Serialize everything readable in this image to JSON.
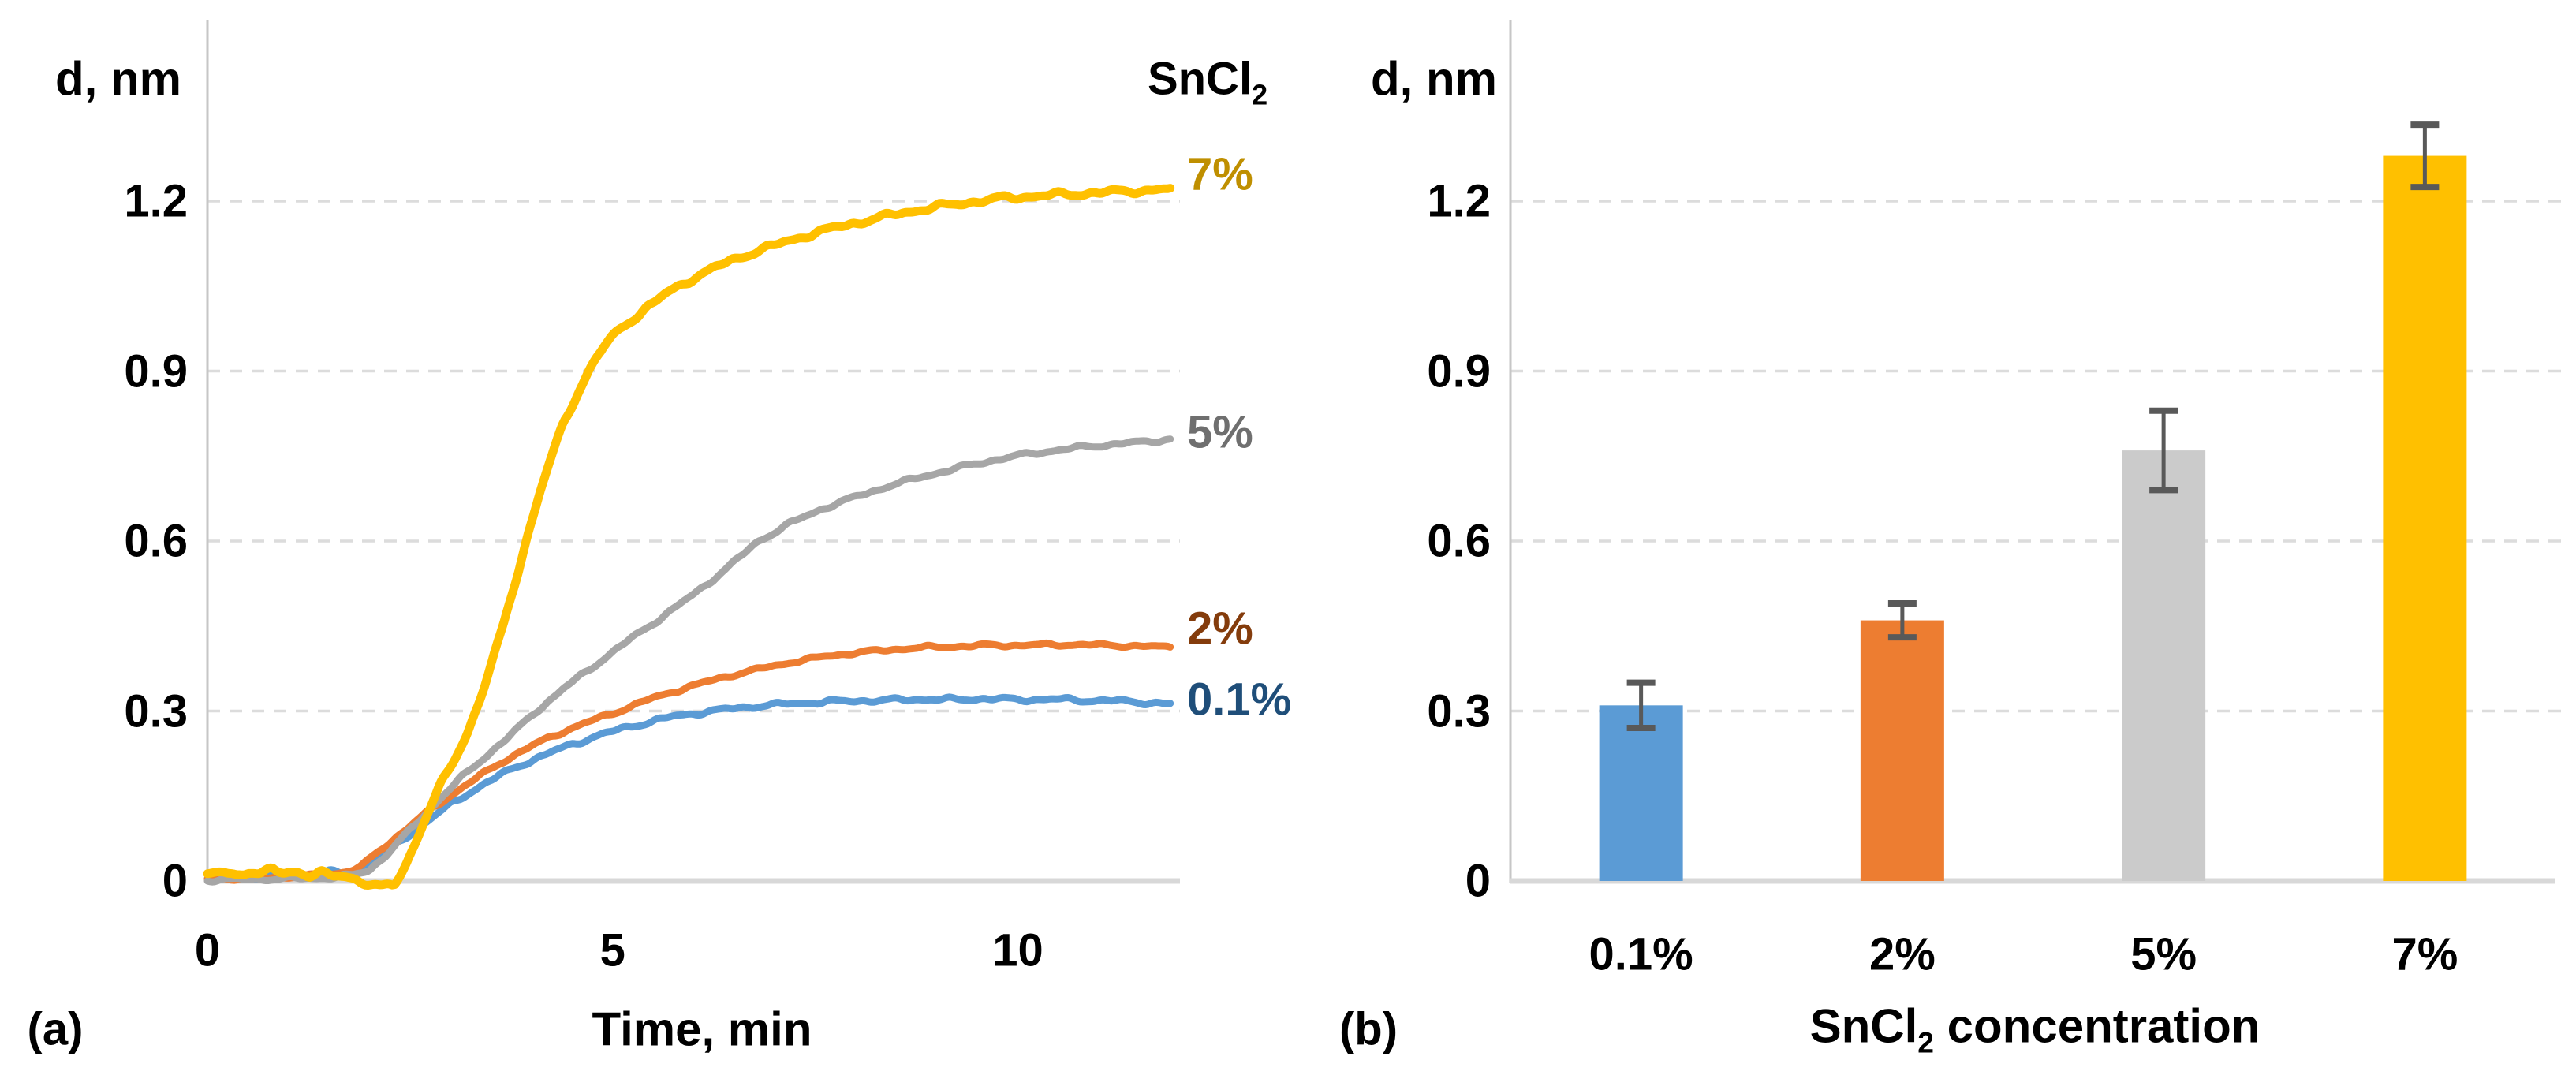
{
  "figure": {
    "background": "#ffffff",
    "grid_color": "#DCDCDC",
    "axis_color": "#C6C6C6",
    "baseline_color": "#D8D8D8",
    "text_color": "#000000"
  },
  "chart_data": [
    {
      "id": "a",
      "type": "line",
      "tag": "(a)",
      "ylabel": "d, nm",
      "xlabel": "Time, min",
      "legend_title": {
        "base": "SnCl",
        "sub": "2",
        "full": "SnCl₂"
      },
      "xlim": [
        0,
        12
      ],
      "ylim": [
        0,
        1.32
      ],
      "grid": "horizontal dashed",
      "legend_position": "right of plot, labels at curve ends",
      "yticks": [
        {
          "v": 0,
          "label": "0"
        },
        {
          "v": 0.3,
          "label": "0.3"
        },
        {
          "v": 0.6,
          "label": "0.6"
        },
        {
          "v": 0.9,
          "label": "0.9"
        },
        {
          "v": 1.2,
          "label": "1.2"
        }
      ],
      "xticks": [
        {
          "v": 0,
          "label": "0"
        },
        {
          "v": 5,
          "label": "5"
        },
        {
          "v": 10,
          "label": "10"
        }
      ],
      "series": [
        {
          "name": "0.1%",
          "color": "#5B9BD5",
          "label_color": "#1F4E79",
          "stroke": 9,
          "noise": 0.0045,
          "points": [
            [
              0,
              0.004
            ],
            [
              0.4,
              0.006
            ],
            [
              0.8,
              0.007
            ],
            [
              1.2,
              0.012
            ],
            [
              1.5,
              0.016
            ],
            [
              1.7,
              0.012
            ],
            [
              1.9,
              0.022
            ],
            [
              2.1,
              0.042
            ],
            [
              2.4,
              0.072
            ],
            [
              2.7,
              0.105
            ],
            [
              3.0,
              0.135
            ],
            [
              3.3,
              0.162
            ],
            [
              3.6,
              0.186
            ],
            [
              3.9,
              0.207
            ],
            [
              4.2,
              0.225
            ],
            [
              4.5,
              0.241
            ],
            [
              4.8,
              0.256
            ],
            [
              5.1,
              0.268
            ],
            [
              5.4,
              0.279
            ],
            [
              5.7,
              0.289
            ],
            [
              6.0,
              0.296
            ],
            [
              6.4,
              0.303
            ],
            [
              6.8,
              0.309
            ],
            [
              7.2,
              0.313
            ],
            [
              7.6,
              0.316
            ],
            [
              8.0,
              0.318
            ],
            [
              8.4,
              0.319
            ],
            [
              8.8,
              0.321
            ],
            [
              9.2,
              0.32
            ],
            [
              9.6,
              0.322
            ],
            [
              10.0,
              0.32
            ],
            [
              10.4,
              0.321
            ],
            [
              10.8,
              0.319
            ],
            [
              11.2,
              0.318
            ],
            [
              11.6,
              0.315
            ],
            [
              11.9,
              0.312
            ]
          ]
        },
        {
          "name": "2%",
          "color": "#ED7D31",
          "label_color": "#843C0C",
          "stroke": 9,
          "noise": 0.0035,
          "points": [
            [
              0,
              0.003
            ],
            [
              0.5,
              0.005
            ],
            [
              1.0,
              0.007
            ],
            [
              1.4,
              0.01
            ],
            [
              1.7,
              0.016
            ],
            [
              1.9,
              0.026
            ],
            [
              2.1,
              0.05
            ],
            [
              2.4,
              0.086
            ],
            [
              2.7,
              0.12
            ],
            [
              3.0,
              0.151
            ],
            [
              3.3,
              0.18
            ],
            [
              3.6,
              0.207
            ],
            [
              3.9,
              0.231
            ],
            [
              4.2,
              0.252
            ],
            [
              4.5,
              0.27
            ],
            [
              4.8,
              0.286
            ],
            [
              5.1,
              0.301
            ],
            [
              5.4,
              0.318
            ],
            [
              5.7,
              0.332
            ],
            [
              6.0,
              0.345
            ],
            [
              6.4,
              0.361
            ],
            [
              6.8,
              0.374
            ],
            [
              7.2,
              0.386
            ],
            [
              7.6,
              0.396
            ],
            [
              8.0,
              0.403
            ],
            [
              8.4,
              0.408
            ],
            [
              8.8,
              0.412
            ],
            [
              9.2,
              0.414
            ],
            [
              9.6,
              0.416
            ],
            [
              10.0,
              0.416
            ],
            [
              10.4,
              0.417
            ],
            [
              10.8,
              0.417
            ],
            [
              11.2,
              0.416
            ],
            [
              11.6,
              0.414
            ],
            [
              11.9,
              0.413
            ]
          ]
        },
        {
          "name": "5%",
          "color": "#A6A6A6",
          "label_color": "#6F6F6F",
          "stroke": 9,
          "noise": 0.004,
          "points": [
            [
              0,
              0.002
            ],
            [
              0.5,
              0.003
            ],
            [
              1.0,
              0.004
            ],
            [
              1.5,
              0.006
            ],
            [
              1.8,
              0.01
            ],
            [
              2.0,
              0.02
            ],
            [
              2.2,
              0.045
            ],
            [
              2.5,
              0.09
            ],
            [
              2.8,
              0.135
            ],
            [
              3.1,
              0.178
            ],
            [
              3.4,
              0.216
            ],
            [
              3.7,
              0.252
            ],
            [
              4.06,
              0.3
            ],
            [
              4.4,
              0.34
            ],
            [
              4.8,
              0.383
            ],
            [
              5.2,
              0.425
            ],
            [
              5.6,
              0.465
            ],
            [
              6.0,
              0.506
            ],
            [
              6.4,
              0.551
            ],
            [
              6.8,
              0.6
            ],
            [
              7.2,
              0.632
            ],
            [
              7.6,
              0.658
            ],
            [
              8.0,
              0.678
            ],
            [
              8.4,
              0.697
            ],
            [
              8.8,
              0.713
            ],
            [
              9.2,
              0.727
            ],
            [
              9.6,
              0.74
            ],
            [
              10.0,
              0.751
            ],
            [
              10.4,
              0.759
            ],
            [
              10.8,
              0.766
            ],
            [
              11.2,
              0.771
            ],
            [
              11.6,
              0.776
            ],
            [
              11.9,
              0.78
            ]
          ]
        },
        {
          "name": "7%",
          "color": "#FFC000",
          "label_color": "#BF8F00",
          "stroke": 11,
          "noise": 0.006,
          "points": [
            [
              0,
              0.01
            ],
            [
              0.2,
              0.016
            ],
            [
              0.35,
              0.01
            ],
            [
              0.5,
              0.018
            ],
            [
              0.65,
              0.012
            ],
            [
              0.8,
              0.02
            ],
            [
              0.95,
              0.013
            ],
            [
              1.1,
              0.018
            ],
            [
              1.25,
              0.01
            ],
            [
              1.4,
              0.014
            ],
            [
              1.55,
              0.007
            ],
            [
              1.7,
              0.01
            ],
            [
              1.85,
              0.002
            ],
            [
              2.0,
              -0.006
            ],
            [
              2.15,
              -0.011
            ],
            [
              2.3,
              -0.008
            ],
            [
              2.45,
              0.03
            ],
            [
              2.6,
              0.08
            ],
            [
              2.75,
              0.13
            ],
            [
              2.9,
              0.175
            ],
            [
              3.05,
              0.215
            ],
            [
              3.2,
              0.26
            ],
            [
              3.35,
              0.315
            ],
            [
              3.5,
              0.38
            ],
            [
              3.65,
              0.45
            ],
            [
              3.8,
              0.53
            ],
            [
              3.95,
              0.61
            ],
            [
              4.1,
              0.685
            ],
            [
              4.25,
              0.75
            ],
            [
              4.4,
              0.81
            ],
            [
              4.55,
              0.856
            ],
            [
              4.7,
              0.9
            ],
            [
              4.9,
              0.945
            ],
            [
              5.1,
              0.975
            ],
            [
              5.4,
              1.01
            ],
            [
              5.7,
              1.04
            ],
            [
              6.0,
              1.065
            ],
            [
              6.3,
              1.085
            ],
            [
              6.6,
              1.103
            ],
            [
              7.0,
              1.122
            ],
            [
              7.4,
              1.14
            ],
            [
              7.8,
              1.155
            ],
            [
              8.2,
              1.168
            ],
            [
              8.6,
              1.18
            ],
            [
              9.0,
              1.19
            ],
            [
              9.4,
              1.198
            ],
            [
              9.8,
              1.205
            ],
            [
              10.2,
              1.209
            ],
            [
              10.6,
              1.212
            ],
            [
              11.0,
              1.215
            ],
            [
              11.4,
              1.218
            ],
            [
              11.9,
              1.221
            ]
          ]
        }
      ]
    },
    {
      "id": "b",
      "type": "bar",
      "tag": "(b)",
      "ylabel": "d, nm",
      "xlabel": {
        "base": "SnCl",
        "sub": "2",
        "post": " concentration",
        "full": "SnCl₂ concentration"
      },
      "ylim": [
        0,
        1.35
      ],
      "grid": "horizontal dashed",
      "yticks": [
        {
          "v": 0,
          "label": "0"
        },
        {
          "v": 0.3,
          "label": "0.3"
        },
        {
          "v": 0.6,
          "label": "0.6"
        },
        {
          "v": 0.9,
          "label": "0.9"
        },
        {
          "v": 1.2,
          "label": "1.2"
        }
      ],
      "categories": [
        "0.1%",
        "2%",
        "5%",
        "7%"
      ],
      "values": [
        0.31,
        0.46,
        0.76,
        1.28
      ],
      "errors": [
        0.04,
        0.03,
        0.07,
        0.055
      ],
      "bar_colors": [
        "#5B9BD5",
        "#ED7D31",
        "#CBCBCB",
        "#FFC000"
      ],
      "error_color": "#595959"
    }
  ]
}
